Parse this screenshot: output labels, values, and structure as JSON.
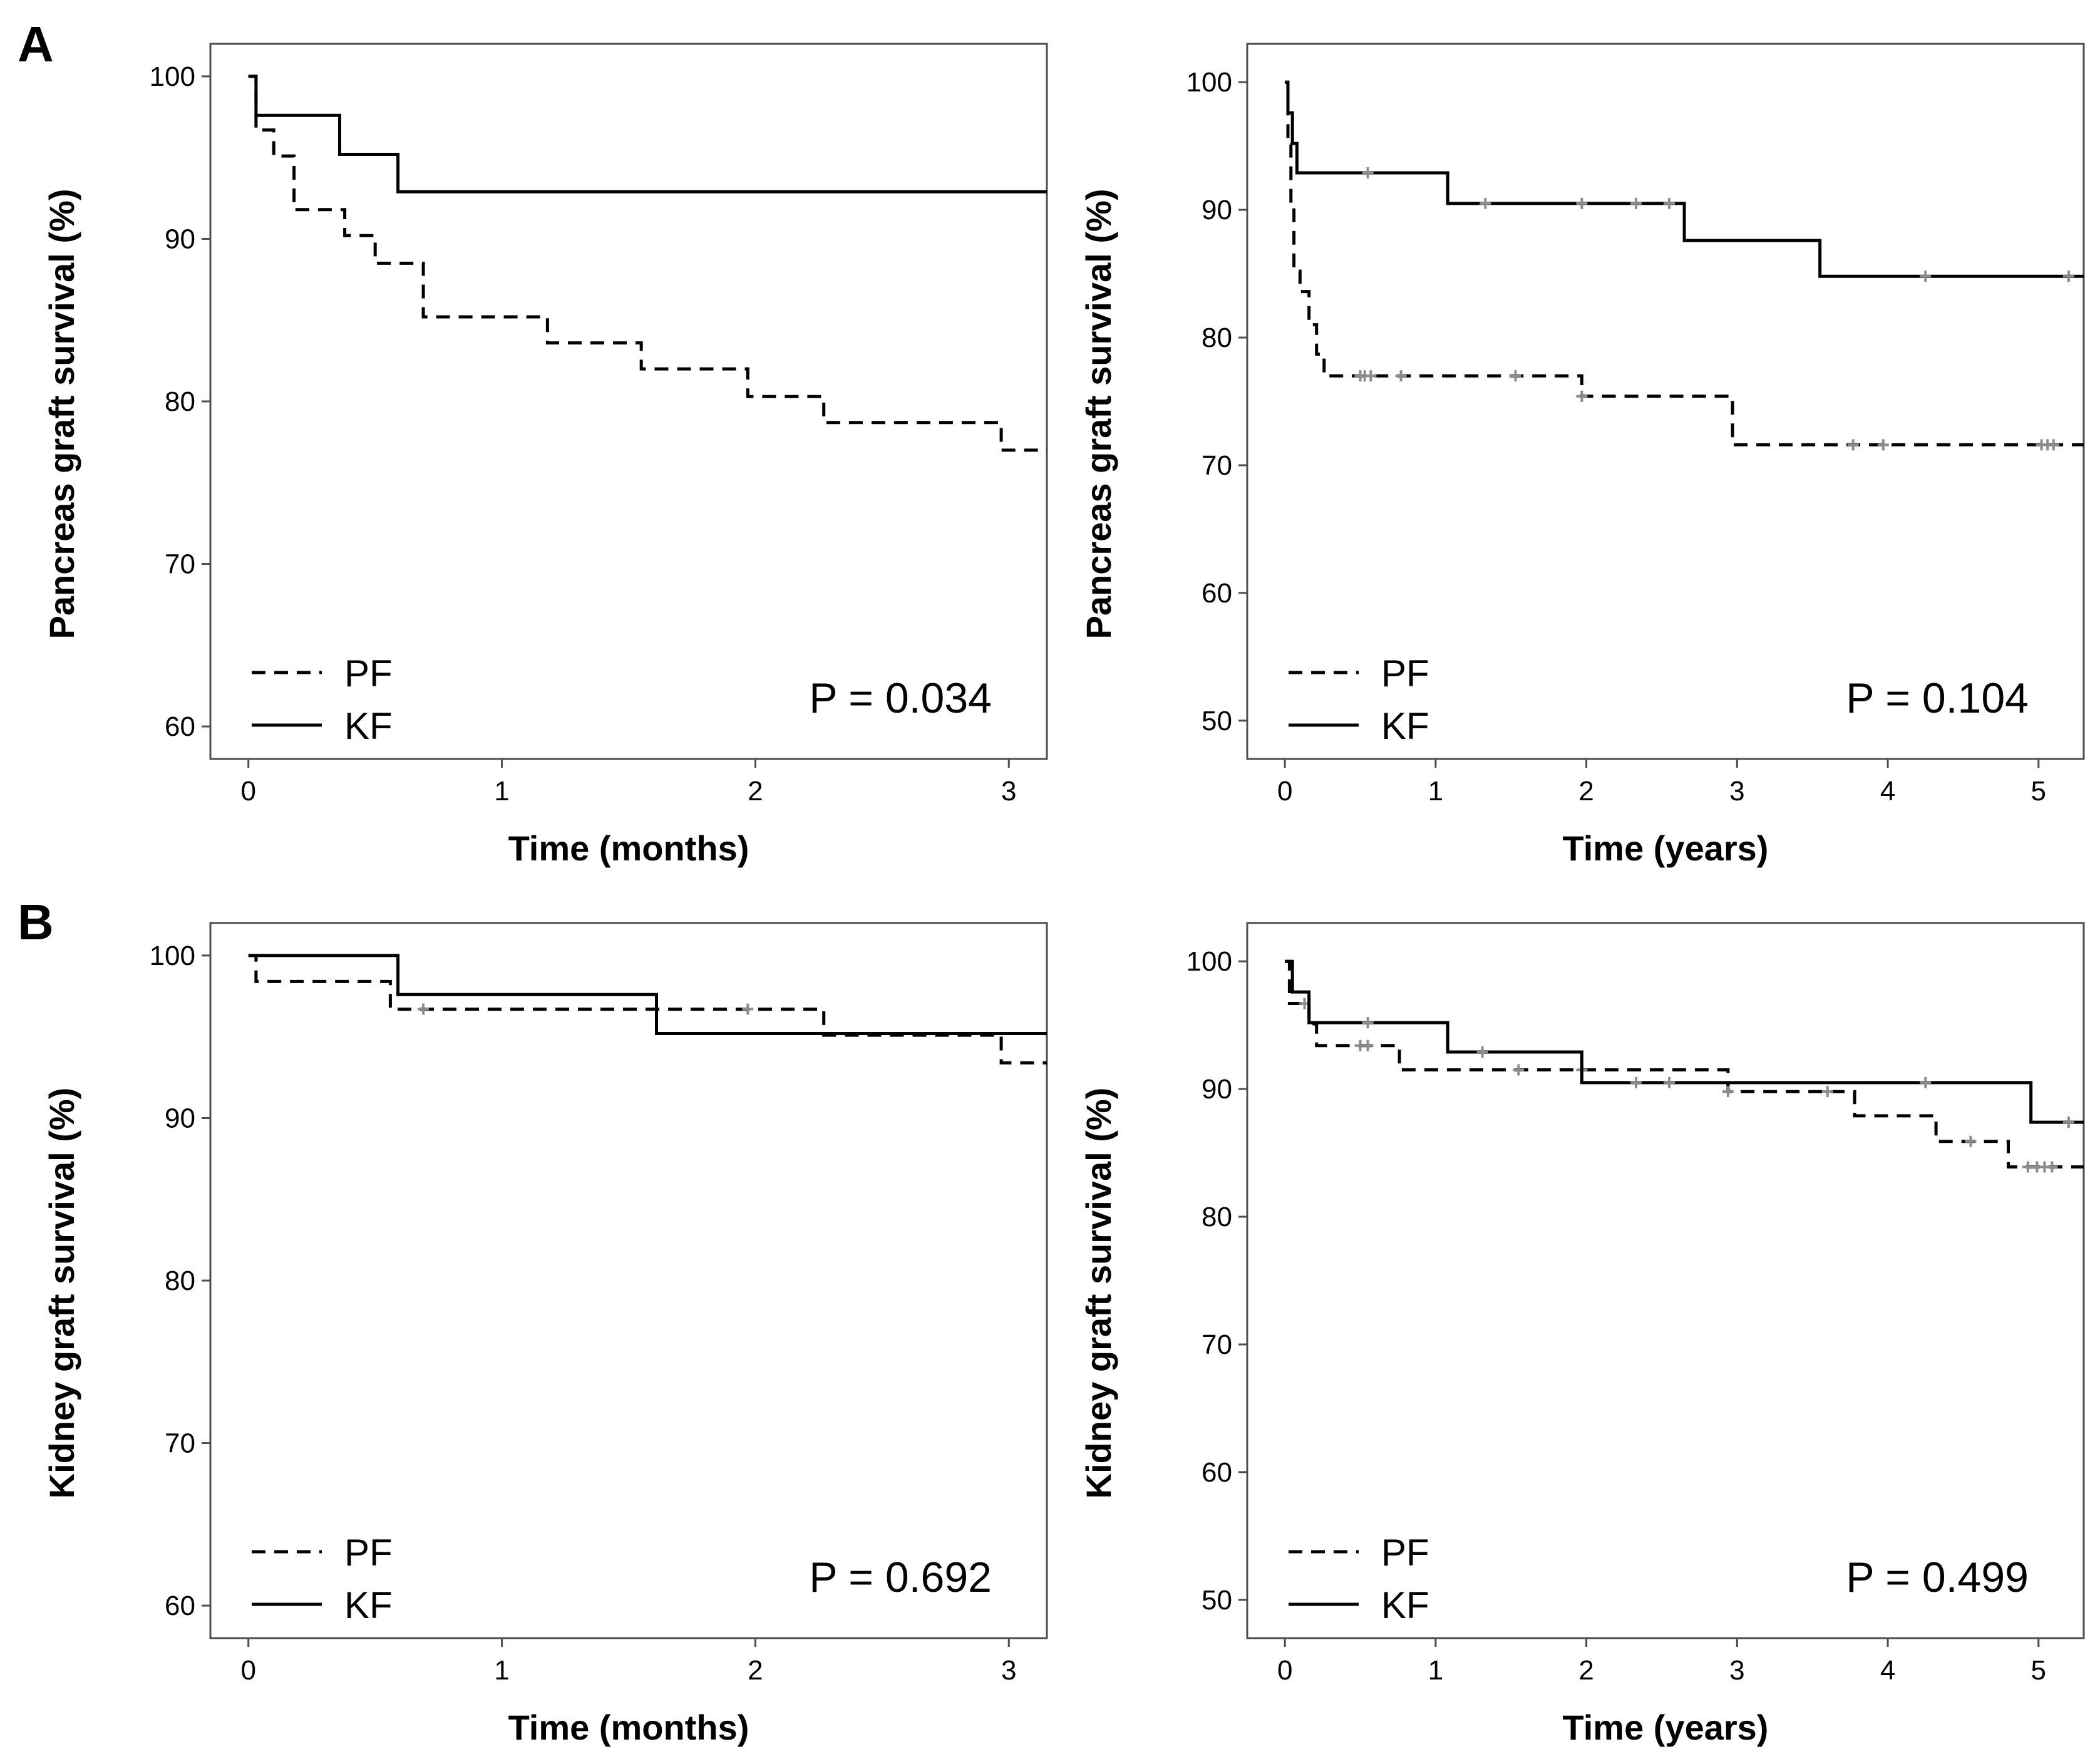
{
  "panel_labels": [
    "A",
    "B"
  ],
  "legend": {
    "pf": "PF",
    "kf": "KF"
  },
  "style": {
    "curve_color": "#000000",
    "censor_color": "#8c8c8c",
    "frame_color": "#4d4d4d"
  },
  "chart_data": [
    {
      "type": "line",
      "panel": "A",
      "xlabel": "Time (months)",
      "ylabel": "Pancreas graft survival (%)",
      "xlim": [
        -0.15,
        3.15
      ],
      "ylim": [
        58,
        102
      ],
      "xticks": [
        0,
        1,
        2,
        3
      ],
      "yticks": [
        60,
        70,
        80,
        90,
        100
      ],
      "pvalue": "P = 0.034",
      "grid": false,
      "legend_position": "bottom-left",
      "series": [
        {
          "name": "PF",
          "style": "dashed",
          "steps": [
            [
              0,
              100
            ],
            [
              0.03,
              96.7
            ],
            [
              0.1,
              95.1
            ],
            [
              0.18,
              91.8
            ],
            [
              0.38,
              90.2
            ],
            [
              0.5,
              88.5
            ],
            [
              0.69,
              85.2
            ],
            [
              1.18,
              83.6
            ],
            [
              1.55,
              82.0
            ],
            [
              1.97,
              80.3
            ],
            [
              2.27,
              78.7
            ],
            [
              2.97,
              77.0
            ],
            [
              3.15,
              77.0
            ]
          ],
          "censored": []
        },
        {
          "name": "KF",
          "style": "solid",
          "steps": [
            [
              0,
              100
            ],
            [
              0.03,
              97.6
            ],
            [
              0.36,
              95.2
            ],
            [
              0.59,
              92.9
            ],
            [
              3.15,
              92.9
            ]
          ],
          "censored": []
        }
      ]
    },
    {
      "type": "line",
      "panel": "A",
      "xlabel": "Time (years)",
      "ylabel": "Pancreas graft survival (%)",
      "xlim": [
        -0.25,
        5.3
      ],
      "ylim": [
        47,
        103
      ],
      "xticks": [
        0,
        1,
        2,
        3,
        4,
        5
      ],
      "yticks": [
        50,
        60,
        70,
        80,
        90,
        100
      ],
      "pvalue": "P = 0.104",
      "grid": false,
      "legend_position": "bottom-left",
      "series": [
        {
          "name": "PF",
          "style": "dashed",
          "steps": [
            [
              0,
              100
            ],
            [
              0.02,
              95.1
            ],
            [
              0.04,
              90.2
            ],
            [
              0.06,
              85.2
            ],
            [
              0.1,
              83.6
            ],
            [
              0.16,
              81.0
            ],
            [
              0.21,
              78.7
            ],
            [
              0.26,
              77.0
            ],
            [
              1.97,
              75.4
            ],
            [
              2.97,
              71.6
            ],
            [
              5.3,
              71.6
            ]
          ],
          "censored": [
            [
              0.5,
              77.0
            ],
            [
              0.53,
              77.0
            ],
            [
              0.57,
              77.0
            ],
            [
              0.77,
              77.0
            ],
            [
              1.53,
              77.0
            ],
            [
              1.97,
              75.4
            ],
            [
              3.77,
              71.6
            ],
            [
              3.97,
              71.6
            ],
            [
              5.02,
              71.6
            ],
            [
              5.06,
              71.6
            ],
            [
              5.1,
              71.6
            ]
          ]
        },
        {
          "name": "KF",
          "style": "solid",
          "steps": [
            [
              0,
              100
            ],
            [
              0.02,
              97.6
            ],
            [
              0.05,
              95.2
            ],
            [
              0.08,
              92.9
            ],
            [
              1.08,
              90.5
            ],
            [
              2.65,
              87.6
            ],
            [
              3.55,
              84.8
            ],
            [
              5.3,
              84.8
            ]
          ],
          "censored": [
            [
              0.55,
              92.9
            ],
            [
              1.33,
              90.5
            ],
            [
              1.97,
              90.5
            ],
            [
              2.33,
              90.5
            ],
            [
              2.55,
              90.5
            ],
            [
              4.25,
              84.8
            ],
            [
              5.2,
              84.8
            ]
          ]
        }
      ]
    },
    {
      "type": "line",
      "panel": "B",
      "xlabel": "Time (months)",
      "ylabel": "Kidney graft survival (%)",
      "xlim": [
        -0.15,
        3.15
      ],
      "ylim": [
        58,
        102
      ],
      "xticks": [
        0,
        1,
        2,
        3
      ],
      "yticks": [
        60,
        70,
        80,
        90,
        100
      ],
      "pvalue": "P = 0.692",
      "grid": false,
      "legend_position": "bottom-left",
      "series": [
        {
          "name": "PF",
          "style": "dashed",
          "steps": [
            [
              0,
              100
            ],
            [
              0.03,
              98.4
            ],
            [
              0.56,
              96.7
            ],
            [
              2.27,
              95.1
            ],
            [
              2.97,
              93.4
            ],
            [
              3.15,
              93.4
            ]
          ],
          "censored": [
            [
              0.69,
              96.7
            ],
            [
              1.97,
              96.7
            ]
          ]
        },
        {
          "name": "KF",
          "style": "solid",
          "steps": [
            [
              0,
              100
            ],
            [
              0.59,
              97.6
            ],
            [
              1.61,
              95.2
            ],
            [
              3.15,
              95.2
            ]
          ],
          "censored": []
        }
      ]
    },
    {
      "type": "line",
      "panel": "B",
      "xlabel": "Time (years)",
      "ylabel": "Kidney graft survival (%)",
      "xlim": [
        -0.25,
        5.3
      ],
      "ylim": [
        47,
        103
      ],
      "xticks": [
        0,
        1,
        2,
        3,
        4,
        5
      ],
      "yticks": [
        50,
        60,
        70,
        80,
        90,
        100
      ],
      "pvalue": "P = 0.499",
      "grid": false,
      "legend_position": "bottom-left",
      "series": [
        {
          "name": "PF",
          "style": "dashed",
          "steps": [
            [
              0,
              100
            ],
            [
              0.03,
              96.7
            ],
            [
              0.16,
              95.1
            ],
            [
              0.21,
              93.4
            ],
            [
              0.76,
              91.5
            ],
            [
              2.94,
              89.8
            ],
            [
              3.78,
              87.9
            ],
            [
              4.32,
              85.9
            ],
            [
              4.8,
              83.9
            ],
            [
              5.3,
              83.9
            ]
          ],
          "censored": [
            [
              0.13,
              96.7
            ],
            [
              0.5,
              93.4
            ],
            [
              0.55,
              93.4
            ],
            [
              1.55,
              91.5
            ],
            [
              1.97,
              91.5
            ],
            [
              2.94,
              89.8
            ],
            [
              3.6,
              89.8
            ],
            [
              4.55,
              85.9
            ],
            [
              4.93,
              83.9
            ],
            [
              4.99,
              83.9
            ],
            [
              5.04,
              83.9
            ],
            [
              5.09,
              83.9
            ]
          ]
        },
        {
          "name": "KF",
          "style": "solid",
          "steps": [
            [
              0,
              100
            ],
            [
              0.05,
              97.6
            ],
            [
              0.16,
              95.2
            ],
            [
              1.08,
              92.9
            ],
            [
              1.97,
              90.5
            ],
            [
              4.95,
              87.4
            ],
            [
              5.3,
              87.4
            ]
          ],
          "censored": [
            [
              0.55,
              95.2
            ],
            [
              1.31,
              92.9
            ],
            [
              2.33,
              90.5
            ],
            [
              2.55,
              90.5
            ],
            [
              4.25,
              90.5
            ],
            [
              5.2,
              87.4
            ]
          ]
        }
      ]
    }
  ]
}
